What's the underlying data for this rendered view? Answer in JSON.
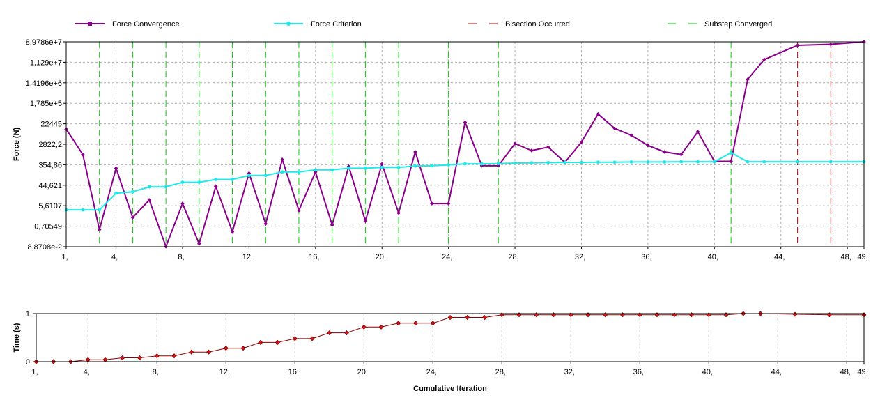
{
  "colors": {
    "force_convergence": "#8b008b",
    "force_criterion": "#20e8e8",
    "bisection": "#cc0000",
    "substep": "#00cc00",
    "time_series": "#8b0000",
    "time_marker_fill": "#cc1a1a",
    "grid": "#b0b0b0"
  },
  "legend": [
    {
      "key": "force_convergence",
      "label": "Force Convergence",
      "style": "line-square"
    },
    {
      "key": "force_criterion",
      "label": "Force Criterion",
      "style": "line-circle"
    },
    {
      "key": "bisection",
      "label": "Bisection Occurred",
      "style": "dashed"
    },
    {
      "key": "substep",
      "label": "Substep Converged",
      "style": "dashed"
    }
  ],
  "chart_data": [
    {
      "type": "line",
      "ylabel": "Force (N)",
      "y_scale": "log",
      "yticks": [
        "8,9786e+7",
        "1,129e+7",
        "1,4196e+6",
        "1,785e+5",
        "22445",
        "2822,2",
        "354,86",
        "44,621",
        "5,6107",
        "0,70549",
        "8,8708e-2"
      ],
      "ytick_values": [
        89786000,
        11290000,
        1419600,
        178500,
        22445,
        2822.2,
        354.86,
        44.621,
        5.6107,
        0.70549,
        0.088708
      ],
      "xlim": [
        1,
        49
      ],
      "xticks": [
        "1,",
        "4,",
        "8,",
        "12,",
        "16,",
        "20,",
        "24,",
        "28,",
        "32,",
        "36,",
        "40,",
        "44,",
        "48,",
        "49,"
      ],
      "xtick_values": [
        1,
        4,
        8,
        12,
        16,
        20,
        24,
        28,
        32,
        36,
        40,
        44,
        48,
        49
      ],
      "grid": true,
      "substep_converged_at": [
        3,
        5,
        7,
        9,
        11,
        13,
        15,
        17,
        19,
        21,
        24,
        27,
        41
      ],
      "bisection_occurred_at": [
        45,
        47
      ],
      "series": [
        {
          "name": "Force Convergence",
          "x": [
            1,
            2,
            3,
            4,
            5,
            6,
            7,
            8,
            9,
            10,
            11,
            12,
            13,
            14,
            15,
            16,
            17,
            18,
            19,
            20,
            21,
            22,
            23,
            24,
            25,
            26,
            27,
            28,
            29,
            30,
            31,
            32,
            33,
            34,
            35,
            36,
            37,
            38,
            39,
            40,
            41,
            42,
            43,
            45,
            47,
            49
          ],
          "y": [
            13000,
            1000,
            0.5,
            250,
            1.7,
            10,
            0.09,
            7,
            0.12,
            40,
            0.4,
            150,
            0.9,
            600,
            3.5,
            170,
            0.8,
            300,
            1.2,
            380,
            2.7,
            1300,
            7,
            7,
            26000,
            320,
            320,
            3000,
            1500,
            2100,
            450,
            3500,
            60000,
            14000,
            7000,
            2500,
            1300,
            1000,
            10000,
            500,
            500,
            2000000,
            15000000,
            63000000,
            70000000,
            90000000
          ]
        },
        {
          "name": "Force Criterion",
          "x": [
            1,
            2,
            3,
            4,
            5,
            6,
            7,
            8,
            9,
            10,
            11,
            12,
            13,
            14,
            15,
            16,
            17,
            18,
            19,
            20,
            21,
            22,
            23,
            24,
            25,
            26,
            27,
            28,
            29,
            30,
            31,
            32,
            33,
            34,
            35,
            36,
            37,
            38,
            39,
            40,
            41,
            42,
            43,
            45,
            47,
            49
          ],
          "y": [
            3.7,
            3.7,
            3.7,
            20,
            23,
            38,
            38,
            60,
            60,
            80,
            80,
            120,
            120,
            170,
            170,
            210,
            210,
            250,
            250,
            270,
            270,
            310,
            320,
            350,
            390,
            390,
            400,
            420,
            430,
            440,
            450,
            450,
            460,
            460,
            470,
            470,
            470,
            480,
            480,
            480,
            1200,
            480,
            480,
            480,
            480,
            480
          ]
        }
      ]
    },
    {
      "type": "line",
      "ylabel": "Time (s)",
      "xlabel": "Cumulative Iteration",
      "ylim": [
        0,
        1
      ],
      "yticks": [
        "1,",
        "0,"
      ],
      "ytick_values": [
        1,
        0
      ],
      "xlim": [
        1,
        49
      ],
      "xticks": [
        "1,",
        "4,",
        "8,",
        "12,",
        "16,",
        "20,",
        "24,",
        "28,",
        "32,",
        "36,",
        "40,",
        "44,",
        "48,",
        "49,"
      ],
      "xtick_values": [
        1,
        4,
        8,
        12,
        16,
        20,
        24,
        28,
        32,
        36,
        40,
        44,
        48,
        49
      ],
      "grid": true,
      "series": [
        {
          "name": "",
          "x": [
            1,
            2,
            3,
            4,
            5,
            6,
            7,
            8,
            9,
            10,
            11,
            12,
            13,
            14,
            15,
            16,
            17,
            18,
            19,
            20,
            21,
            22,
            23,
            24,
            25,
            26,
            27,
            28,
            29,
            30,
            31,
            32,
            33,
            34,
            35,
            36,
            37,
            38,
            39,
            40,
            41,
            42,
            43,
            45,
            47,
            49
          ],
          "y": [
            0,
            0,
            0,
            0.04,
            0.04,
            0.08,
            0.08,
            0.12,
            0.12,
            0.2,
            0.2,
            0.28,
            0.28,
            0.4,
            0.4,
            0.48,
            0.48,
            0.6,
            0.6,
            0.72,
            0.72,
            0.8,
            0.8,
            0.8,
            0.92,
            0.92,
            0.92,
            0.975,
            0.975,
            0.975,
            0.975,
            0.975,
            0.975,
            0.975,
            0.975,
            0.975,
            0.975,
            0.975,
            0.975,
            0.975,
            0.975,
            1,
            1,
            0.985,
            0.975,
            0.975
          ]
        }
      ]
    }
  ]
}
